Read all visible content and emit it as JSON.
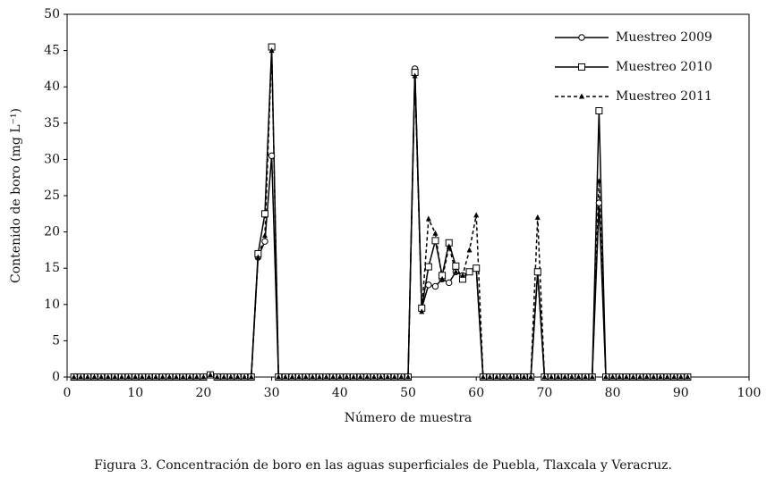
{
  "chart_data": {
    "type": "line",
    "xlabel": "Número de muestra",
    "ylabel": "Contenido de boro (mg L⁻¹)",
    "caption": "Figura 3. Concentración de boro en las aguas superficiales de Puebla, Tlaxcala y Veracruz.",
    "x": [
      1,
      2,
      3,
      4,
      5,
      6,
      7,
      8,
      9,
      10,
      11,
      12,
      13,
      14,
      15,
      16,
      17,
      18,
      19,
      20,
      21,
      22,
      23,
      24,
      25,
      26,
      27,
      28,
      29,
      30,
      31,
      32,
      33,
      34,
      35,
      36,
      37,
      38,
      39,
      40,
      41,
      42,
      43,
      44,
      45,
      46,
      47,
      48,
      49,
      50,
      51,
      52,
      53,
      54,
      55,
      56,
      57,
      58,
      59,
      60,
      61,
      62,
      63,
      64,
      65,
      66,
      67,
      68,
      69,
      70,
      71,
      72,
      73,
      74,
      75,
      76,
      77,
      78,
      79,
      80,
      81,
      82,
      83,
      84,
      85,
      86,
      87,
      88,
      89,
      90,
      91
    ],
    "series": [
      {
        "name": "Muestreo 2009",
        "color": "#000000",
        "marker": "circle",
        "dash": false,
        "values": [
          0,
          0,
          0,
          0,
          0,
          0,
          0,
          0,
          0,
          0,
          0,
          0,
          0,
          0,
          0,
          0,
          0,
          0,
          0,
          0,
          0.3,
          0,
          0,
          0,
          0,
          0,
          0,
          16.5,
          18.7,
          30.5,
          0,
          0,
          0,
          0,
          0,
          0,
          0,
          0,
          0,
          0,
          0,
          0,
          0,
          0,
          0,
          0,
          0,
          0,
          0,
          0,
          42.5,
          9.5,
          12.7,
          12.5,
          13.5,
          13,
          14.5,
          14,
          14.5,
          15,
          0,
          0,
          0,
          0,
          0,
          0,
          0,
          0,
          14.5,
          0,
          0,
          0,
          0,
          0,
          0,
          0,
          0,
          24,
          0,
          0,
          0,
          0,
          0,
          0,
          0,
          0,
          0,
          0,
          0,
          0,
          0
        ]
      },
      {
        "name": "Muestreo 2010",
        "color": "#000000",
        "marker": "square",
        "dash": false,
        "values": [
          0,
          0,
          0,
          0,
          0,
          0,
          0,
          0,
          0,
          0,
          0,
          0,
          0,
          0,
          0,
          0,
          0,
          0,
          0,
          0,
          0.3,
          0,
          0,
          0,
          0,
          0,
          0,
          17,
          22.5,
          45.5,
          0,
          0,
          0,
          0,
          0,
          0,
          0,
          0,
          0,
          0,
          0,
          0,
          0,
          0,
          0,
          0,
          0,
          0,
          0,
          0,
          42,
          9.5,
          15.2,
          18.8,
          14,
          18.5,
          15.3,
          13.5,
          14.5,
          15,
          0,
          0,
          0,
          0,
          0,
          0,
          0,
          0,
          14.5,
          0,
          0,
          0,
          0,
          0,
          0,
          0,
          0,
          36.7,
          0,
          0,
          0,
          0,
          0,
          0,
          0,
          0,
          0,
          0,
          0,
          0,
          0
        ]
      },
      {
        "name": "Muestreo 2011",
        "color": "#000000",
        "marker": "triangle",
        "dash": true,
        "values": [
          0,
          0,
          0,
          0,
          0,
          0,
          0,
          0,
          0,
          0,
          0,
          0,
          0,
          0,
          0,
          0,
          0,
          0,
          0,
          0,
          0.3,
          0,
          0,
          0,
          0,
          0,
          0,
          16.5,
          19.5,
          45,
          0,
          0,
          0,
          0,
          0,
          0,
          0,
          0,
          0,
          0,
          0,
          0,
          0,
          0,
          0,
          0,
          0,
          0,
          0,
          0,
          41.5,
          9,
          21.8,
          19.8,
          13.5,
          18,
          14.5,
          14,
          17.5,
          22.3,
          0,
          0,
          0,
          0,
          0,
          0,
          0,
          0,
          22,
          0,
          0,
          0,
          0,
          0,
          0,
          0,
          0,
          27,
          0,
          0,
          0,
          0,
          0,
          0,
          0,
          0,
          0,
          0,
          0,
          0,
          0
        ]
      }
    ],
    "xlim": [
      0,
      100
    ],
    "xticks": [
      0,
      10,
      20,
      30,
      40,
      50,
      60,
      70,
      80,
      90,
      100
    ],
    "ylim": [
      0,
      50
    ],
    "yticks": [
      0,
      5,
      10,
      15,
      20,
      25,
      30,
      35,
      40,
      45,
      50
    ],
    "grid": false,
    "legend": "top-right"
  }
}
